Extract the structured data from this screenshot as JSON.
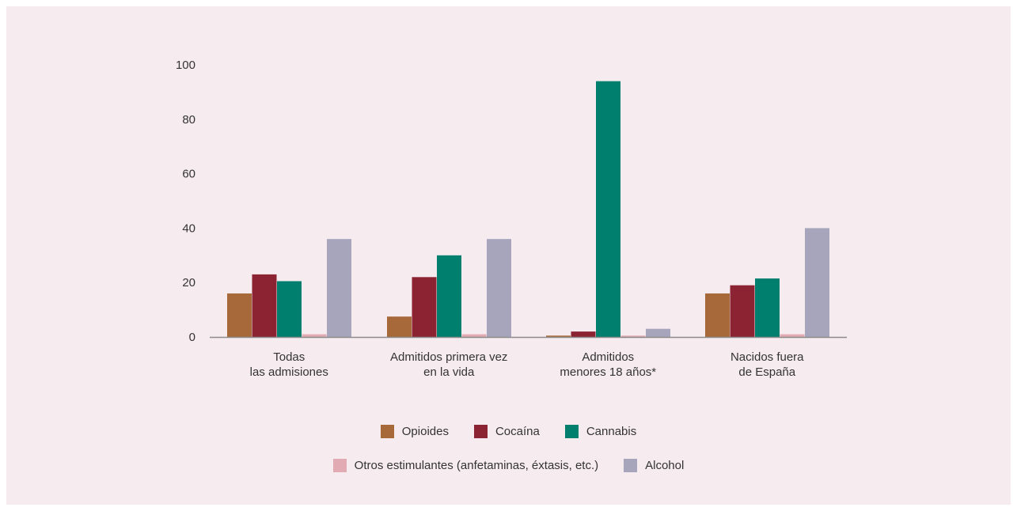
{
  "chart_data": {
    "type": "bar",
    "title": "",
    "xlabel": "",
    "ylabel": "",
    "ylim": [
      0,
      100
    ],
    "yticks": [
      0,
      20,
      40,
      60,
      80,
      100
    ],
    "grid": false,
    "legend_position": "bottom",
    "categories": [
      [
        "Todas",
        "las admisiones"
      ],
      [
        "Admitidos primera vez",
        "en la vida"
      ],
      [
        "Admitidos",
        "menores 18 años*"
      ],
      [
        "Nacidos fuera",
        "de España"
      ]
    ],
    "series": [
      {
        "name": "Opioides",
        "color": "#a8693a",
        "values": [
          16,
          7.5,
          0.5,
          16
        ]
      },
      {
        "name": "Cocaína",
        "color": "#8b2332",
        "values": [
          23,
          22,
          2,
          19
        ]
      },
      {
        "name": "Cannabis",
        "color": "#007f6e",
        "values": [
          20.5,
          30,
          94,
          21.5
        ]
      },
      {
        "name": "Otros estimulantes (anfetaminas, éxtasis, etc.)",
        "color": "#e2aab3",
        "values": [
          1,
          1,
          0.5,
          1
        ]
      },
      {
        "name": "Alcohol",
        "color": "#a6a5bc",
        "values": [
          36,
          36,
          3,
          40
        ]
      }
    ],
    "legend_rows": [
      [
        0,
        1,
        2
      ],
      [
        3,
        4
      ]
    ]
  }
}
